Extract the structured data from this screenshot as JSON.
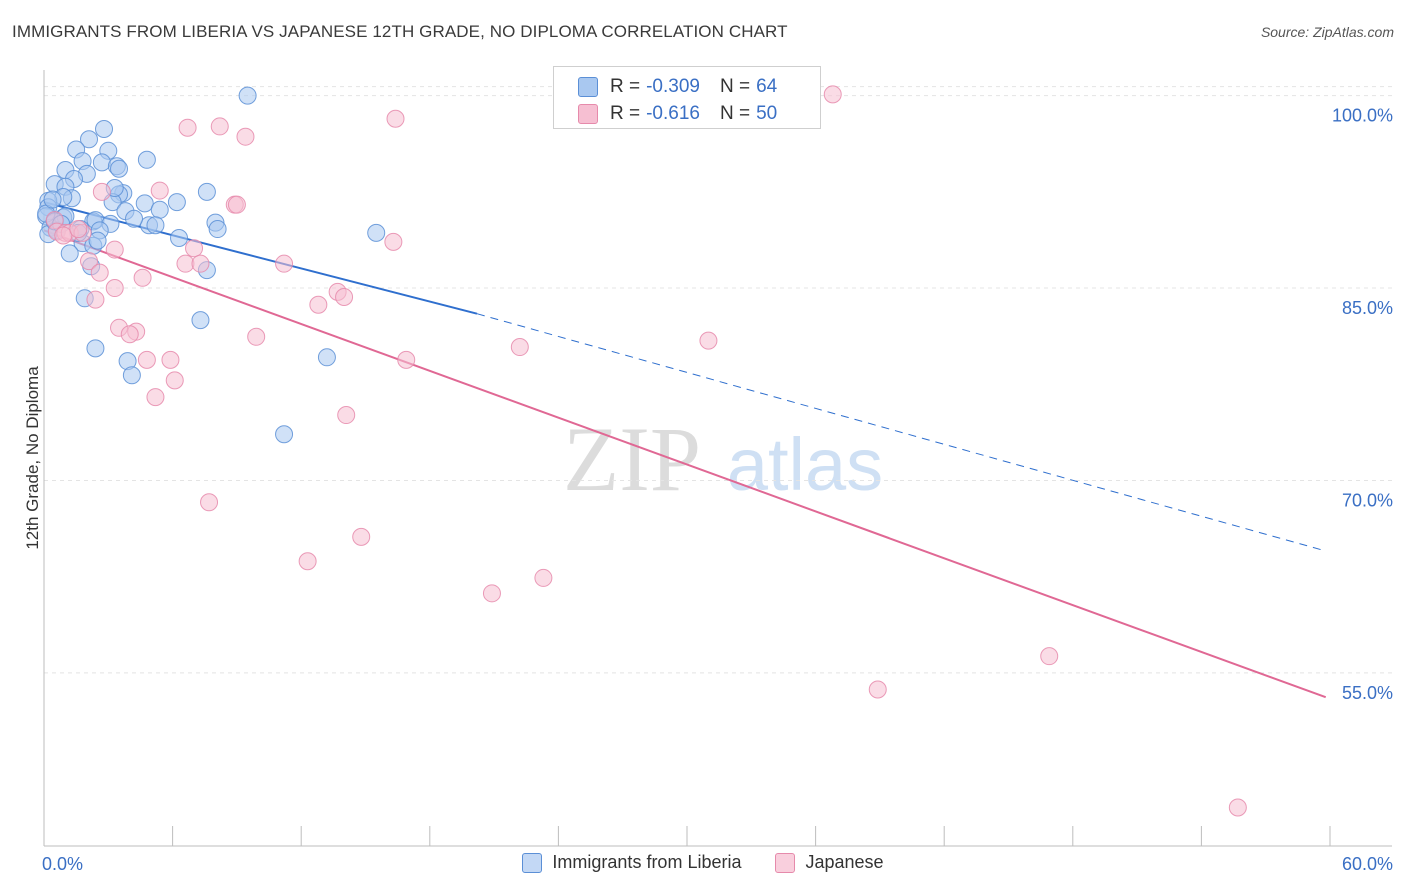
{
  "header": {
    "title": "IMMIGRANTS FROM LIBERIA VS JAPANESE 12TH GRADE, NO DIPLOMA CORRELATION CHART",
    "source": "Source: ZipAtlas.com"
  },
  "watermark": {
    "zip": "ZIP",
    "atlas": "atlas"
  },
  "colors": {
    "blue_fill": "#a9c8f0",
    "blue_stroke": "#5b8fd6",
    "blue_line": "#2f6fce",
    "pink_fill": "#f6bfd2",
    "pink_stroke": "#e68aab",
    "pink_line": "#e06894",
    "value_text": "#3a6fc4"
  },
  "stats": {
    "rows": [
      {
        "r_label": "R =",
        "r_value": "-0.309",
        "n_label": "N =",
        "n_value": "64"
      },
      {
        "r_label": "R =",
        "r_value": "-0.616",
        "n_label": "N =",
        "n_value": "50"
      }
    ]
  },
  "chart_data": {
    "type": "scatter",
    "title": "IMMIGRANTS FROM LIBERIA VS JAPANESE 12TH GRADE, NO DIPLOMA CORRELATION CHART",
    "ylabel": "12th Grade, No Diploma",
    "xlim": [
      0,
      60
    ],
    "ylim": [
      41.5,
      102
    ],
    "x_tick_labels": [
      "0.0%",
      "60.0%"
    ],
    "y_ticks": [
      55,
      70,
      85,
      100
    ],
    "y_tick_labels": [
      "55.0%",
      "70.0%",
      "85.0%",
      "100.0%"
    ],
    "grid": true,
    "legend": [
      "Immigrants from Liberia",
      "Japanese"
    ],
    "series": [
      {
        "name": "Immigrants from Liberia",
        "trend": {
          "x_start": 0,
          "y_start": 91.7,
          "x_solid_end": 20.2,
          "y_solid_end": 83.0,
          "x_dash_end": 59.8,
          "y_dash_end": 64.5
        },
        "points": [
          [
            9.5,
            100.0
          ],
          [
            2.8,
            97.4
          ],
          [
            2.1,
            96.6
          ],
          [
            1.5,
            95.8
          ],
          [
            3.0,
            95.7
          ],
          [
            4.8,
            95.0
          ],
          [
            2.7,
            94.8
          ],
          [
            1.8,
            94.9
          ],
          [
            3.4,
            94.5
          ],
          [
            3.5,
            94.3
          ],
          [
            1.0,
            94.2
          ],
          [
            2.0,
            93.9
          ],
          [
            1.4,
            93.5
          ],
          [
            0.5,
            93.1
          ],
          [
            1.0,
            92.9
          ],
          [
            7.6,
            92.5
          ],
          [
            3.7,
            92.4
          ],
          [
            3.5,
            92.3
          ],
          [
            1.3,
            92.0
          ],
          [
            0.9,
            92.1
          ],
          [
            0.2,
            91.8
          ],
          [
            3.2,
            91.7
          ],
          [
            4.7,
            91.6
          ],
          [
            6.2,
            91.7
          ],
          [
            0.2,
            91.3
          ],
          [
            3.8,
            91.0
          ],
          [
            5.4,
            91.1
          ],
          [
            0.1,
            90.6
          ],
          [
            0.9,
            90.5
          ],
          [
            1.0,
            90.6
          ],
          [
            2.3,
            90.2
          ],
          [
            2.4,
            90.3
          ],
          [
            3.1,
            90.0
          ],
          [
            8.0,
            90.1
          ],
          [
            4.9,
            89.9
          ],
          [
            5.2,
            89.9
          ],
          [
            8.1,
            89.6
          ],
          [
            0.3,
            89.7
          ],
          [
            0.6,
            89.5
          ],
          [
            1.7,
            89.6
          ],
          [
            2.6,
            89.5
          ],
          [
            15.5,
            89.3
          ],
          [
            0.2,
            89.2
          ],
          [
            6.3,
            88.9
          ],
          [
            1.8,
            88.5
          ],
          [
            2.3,
            88.3
          ],
          [
            1.2,
            87.7
          ],
          [
            2.2,
            86.7
          ],
          [
            7.6,
            86.4
          ],
          [
            1.9,
            84.2
          ],
          [
            7.3,
            82.5
          ],
          [
            2.4,
            80.3
          ],
          [
            13.2,
            79.6
          ],
          [
            3.9,
            79.3
          ],
          [
            4.1,
            78.2
          ],
          [
            11.2,
            73.6
          ],
          [
            0.1,
            90.8
          ],
          [
            0.5,
            90.2
          ],
          [
            1.6,
            89.3
          ],
          [
            0.8,
            90.0
          ],
          [
            2.5,
            88.7
          ],
          [
            3.3,
            92.8
          ],
          [
            4.2,
            90.4
          ],
          [
            0.4,
            91.9
          ]
        ]
      },
      {
        "name": "Japanese",
        "trend": {
          "x_start": 0,
          "y_start": 89.5,
          "x_solid_end": 59.8,
          "y_solid_end": 53.1
        },
        "points": [
          [
            36.8,
            100.1
          ],
          [
            16.4,
            98.2
          ],
          [
            6.7,
            97.5
          ],
          [
            8.2,
            97.6
          ],
          [
            9.4,
            96.8
          ],
          [
            5.4,
            92.6
          ],
          [
            2.7,
            92.5
          ],
          [
            8.9,
            91.5
          ],
          [
            9.0,
            91.5
          ],
          [
            16.3,
            88.6
          ],
          [
            0.5,
            90.3
          ],
          [
            0.6,
            89.4
          ],
          [
            1.0,
            89.3
          ],
          [
            1.2,
            89.3
          ],
          [
            1.8,
            89.3
          ],
          [
            3.3,
            88.0
          ],
          [
            7.0,
            88.1
          ],
          [
            2.1,
            87.1
          ],
          [
            6.6,
            86.9
          ],
          [
            7.3,
            86.9
          ],
          [
            11.2,
            86.9
          ],
          [
            2.6,
            86.2
          ],
          [
            4.6,
            85.8
          ],
          [
            3.3,
            85.0
          ],
          [
            13.7,
            84.7
          ],
          [
            14.0,
            84.3
          ],
          [
            2.4,
            84.1
          ],
          [
            12.8,
            83.7
          ],
          [
            3.5,
            81.9
          ],
          [
            4.3,
            81.6
          ],
          [
            4.0,
            81.4
          ],
          [
            9.9,
            81.2
          ],
          [
            31.0,
            80.9
          ],
          [
            22.2,
            80.4
          ],
          [
            4.8,
            79.4
          ],
          [
            5.9,
            79.4
          ],
          [
            16.9,
            79.4
          ],
          [
            6.1,
            77.8
          ],
          [
            5.2,
            76.5
          ],
          [
            14.1,
            75.1
          ],
          [
            7.7,
            68.3
          ],
          [
            14.8,
            65.6
          ],
          [
            12.3,
            63.7
          ],
          [
            23.3,
            62.4
          ],
          [
            20.9,
            61.2
          ],
          [
            46.9,
            56.3
          ],
          [
            38.9,
            53.7
          ],
          [
            55.7,
            44.5
          ],
          [
            0.9,
            89.1
          ],
          [
            1.6,
            89.6
          ]
        ]
      }
    ]
  }
}
